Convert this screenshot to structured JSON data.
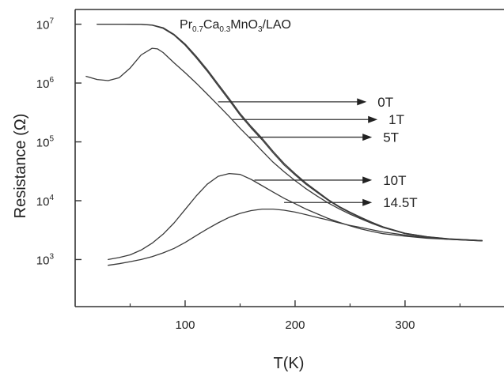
{
  "chart_data": {
    "type": "line",
    "title": "",
    "annotation": {
      "parts": [
        {
          "text": "Pr",
          "sub": false
        },
        {
          "text": "0.7",
          "sub": true
        },
        {
          "text": "Ca",
          "sub": false
        },
        {
          "text": "0.3",
          "sub": true
        },
        {
          "text": "MnO",
          "sub": false
        },
        {
          "text": "3",
          "sub": true
        },
        {
          "text": "/LAO",
          "sub": false
        }
      ]
    },
    "xlabel": "T(K)",
    "ylabel": "Resistance (Ω)",
    "xlim": [
      0,
      390
    ],
    "ylim_log10": [
      2.2,
      7.25
    ],
    "yscale": "log",
    "x_ticks": [
      {
        "value": 100,
        "label": "100"
      },
      {
        "value": 200,
        "label": "200"
      },
      {
        "value": 300,
        "label": "300"
      }
    ],
    "y_ticks": [
      {
        "exp": 3,
        "base": "10",
        "sup": "3"
      },
      {
        "exp": 4,
        "base": "10",
        "sup": "4"
      },
      {
        "exp": 5,
        "base": "10",
        "sup": "5"
      },
      {
        "exp": 6,
        "base": "10",
        "sup": "6"
      },
      {
        "exp": 7,
        "base": "10",
        "sup": "7"
      }
    ],
    "series": [
      {
        "name": "0T",
        "x": [
          20,
          45,
          60,
          70,
          80,
          90,
          100,
          110,
          120,
          130,
          140,
          150,
          160,
          170,
          180,
          190,
          200,
          210,
          220,
          230,
          240,
          250,
          260,
          270,
          280,
          300,
          320,
          340,
          370
        ],
        "y": [
          10000000,
          10000000,
          9950000,
          9700000,
          8700000,
          6700000,
          4600000,
          2860000,
          1700000,
          960000,
          546000,
          303000,
          183000,
          115000,
          69000,
          43000,
          29000,
          20000,
          14500,
          10500,
          8000,
          6400,
          5200,
          4300,
          3600,
          2800,
          2450,
          2250,
          2100
        ]
      },
      {
        "name": "1T",
        "x": [
          20,
          45,
          60,
          70,
          80,
          90,
          100,
          110,
          120,
          130,
          140,
          150,
          160,
          170,
          180,
          190,
          200,
          210,
          220,
          230,
          240,
          250,
          260,
          270,
          280,
          300,
          320,
          340,
          370
        ],
        "y": [
          10000000,
          10000000,
          9900000,
          9600000,
          8500000,
          6500000,
          4400000,
          2700000,
          1600000,
          900000,
          510000,
          285000,
          172000,
          108000,
          65000,
          40500,
          27500,
          19000,
          13900,
          10200,
          7800,
          6250,
          5100,
          4250,
          3580,
          2790,
          2440,
          2240,
          2100
        ]
      },
      {
        "name": "5T",
        "x": [
          10,
          20,
          30,
          40,
          50,
          60,
          70,
          75,
          80,
          90,
          100,
          110,
          120,
          130,
          140,
          150,
          160,
          170,
          180,
          190,
          200,
          210,
          220,
          230,
          240,
          250,
          260,
          270,
          280,
          300,
          320,
          340,
          370
        ],
        "y": [
          1300000,
          1150000,
          1100000,
          1230000,
          1800000,
          3000000,
          3900000,
          3800000,
          3300000,
          2200000,
          1500000,
          1000000,
          650000,
          420000,
          270000,
          170000,
          110000,
          70000,
          45000,
          31000,
          22000,
          16000,
          12000,
          9200,
          7300,
          5900,
          4900,
          4100,
          3500,
          2750,
          2420,
          2230,
          2100
        ]
      },
      {
        "name": "10T",
        "x": [
          30,
          40,
          50,
          60,
          70,
          80,
          90,
          100,
          110,
          120,
          130,
          140,
          150,
          160,
          170,
          180,
          190,
          200,
          210,
          220,
          230,
          240,
          250,
          260,
          270,
          280,
          300,
          320,
          340,
          370
        ],
        "y": [
          1000,
          1080,
          1200,
          1450,
          1900,
          2700,
          4200,
          7100,
          12000,
          19000,
          26000,
          29000,
          28000,
          23000,
          18000,
          14000,
          11000,
          8900,
          7200,
          6000,
          5000,
          4300,
          3750,
          3300,
          3000,
          2750,
          2500,
          2300,
          2200,
          2080
        ]
      },
      {
        "name": "14.5T",
        "x": [
          30,
          40,
          50,
          60,
          70,
          80,
          90,
          100,
          110,
          120,
          130,
          140,
          150,
          160,
          170,
          180,
          190,
          200,
          210,
          220,
          230,
          240,
          250,
          260,
          270,
          280,
          300,
          320,
          340,
          370
        ],
        "y": [
          800,
          850,
          920,
          1000,
          1120,
          1300,
          1550,
          1950,
          2550,
          3300,
          4200,
          5200,
          6100,
          6800,
          7200,
          7200,
          6900,
          6400,
          5800,
          5200,
          4700,
          4200,
          3800,
          3500,
          3200,
          2950,
          2600,
          2350,
          2200,
          2080
        ]
      }
    ],
    "arrows": [
      {
        "label": "0T",
        "from": [
          130,
          5.68
        ],
        "to": [
          265,
          5.68
        ]
      },
      {
        "label": "1T",
        "from": [
          143,
          5.38
        ],
        "to": [
          275,
          5.38
        ]
      },
      {
        "label": "5T",
        "from": [
          158,
          5.08
        ],
        "to": [
          270,
          5.08
        ]
      },
      {
        "label": "10T",
        "from": [
          163,
          4.35
        ],
        "to": [
          270,
          4.35
        ]
      },
      {
        "label": "14.5T",
        "from": [
          190,
          3.97
        ],
        "to": [
          270,
          3.97
        ]
      }
    ],
    "grid": false,
    "legend": "arrow-labels"
  }
}
